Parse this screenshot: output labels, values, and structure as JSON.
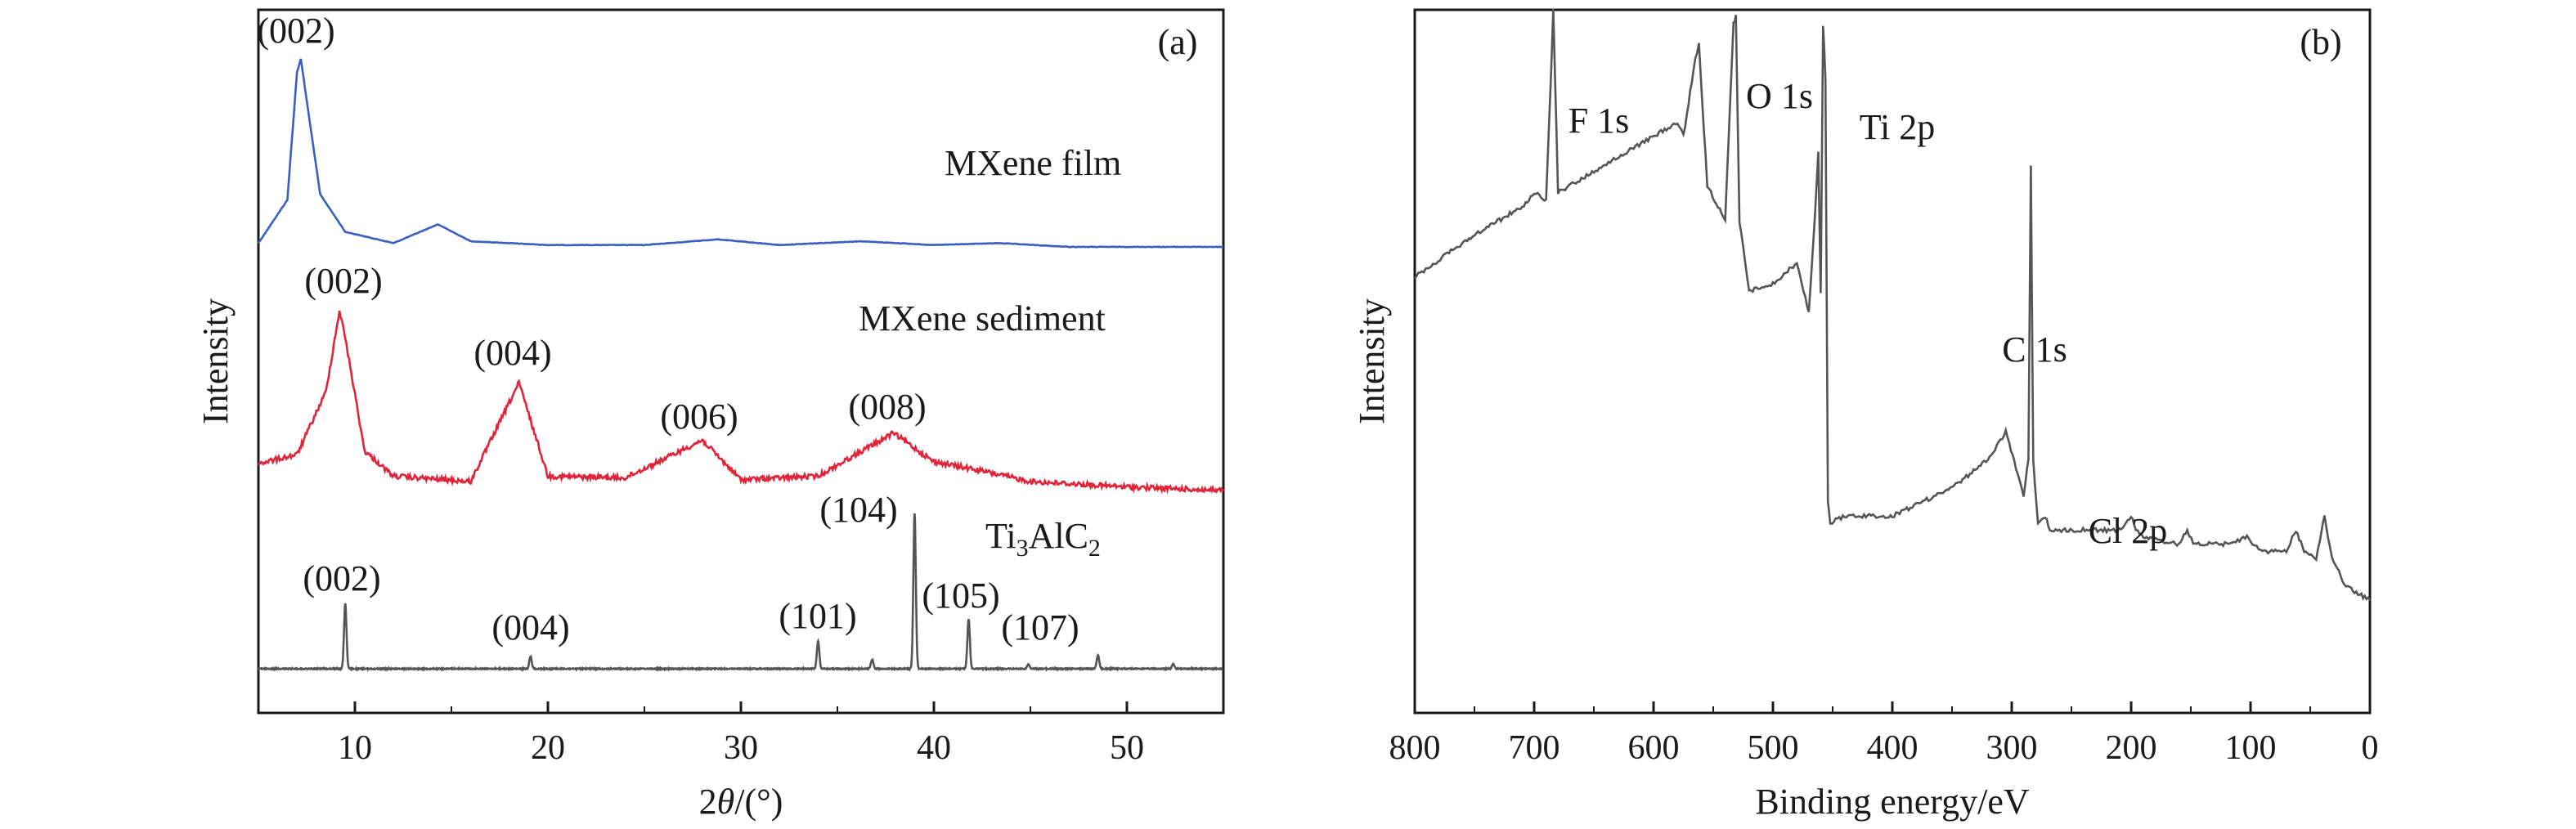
{
  "chart_data": [
    {
      "type": "line",
      "panel_label": "(a)",
      "xlabel": "2θ/(°)",
      "xlabel_parts": {
        "symbol": "2",
        "theta": "θ",
        "unit": "/(°)"
      },
      "ylabel": "Intensity",
      "xlim": [
        5,
        55
      ],
      "xticks": [
        10,
        20,
        30,
        40,
        50
      ],
      "yticks_visible": false,
      "grid": false,
      "series": [
        {
          "name": "MXene film",
          "color": "#3a5fc0",
          "x": [
            5,
            6.5,
            7.0,
            7.2,
            7.5,
            8.2,
            9.5,
            12,
            14.3,
            16,
            20,
            25,
            28.8,
            32,
            36.2,
            40,
            43.4,
            47,
            55
          ],
          "y": [
            0.02,
            0.25,
            0.93,
            1.0,
            0.78,
            0.28,
            0.08,
            0.02,
            0.12,
            0.03,
            0.01,
            0.01,
            0.04,
            0.01,
            0.03,
            0.01,
            0.02,
            0.0,
            0.0
          ],
          "peaks": [
            {
              "x": 7.2,
              "label": "(002)"
            }
          ]
        },
        {
          "name": "MXene sediment",
          "color": "#e0243a",
          "x": [
            5,
            7,
            8.5,
            9.2,
            9.5,
            10.5,
            12,
            16,
            18.5,
            20,
            24,
            28,
            30,
            34,
            37.9,
            40,
            42,
            45,
            50,
            55
          ],
          "y": [
            0.15,
            0.2,
            0.55,
            1.0,
            0.85,
            0.22,
            0.08,
            0.05,
            0.6,
            0.08,
            0.07,
            0.28,
            0.06,
            0.08,
            0.32,
            0.16,
            0.12,
            0.05,
            0.02,
            0.0
          ],
          "peaks": [
            {
              "x": 9.2,
              "label": "(002)"
            },
            {
              "x": 18.5,
              "label": "(004)"
            },
            {
              "x": 28.0,
              "label": "(006)"
            },
            {
              "x": 37.9,
              "label": "(008)"
            }
          ]
        },
        {
          "name": "Ti3AlC2",
          "name_parts": {
            "base": "Ti",
            "sub1": "3",
            "mid": "AlC",
            "sub2": "2"
          },
          "color": "#555555",
          "peaks": [
            {
              "x": 9.5,
              "height": 0.42,
              "label": "(002)"
            },
            {
              "x": 19.1,
              "height": 0.08,
              "label": "(004)"
            },
            {
              "x": 34.0,
              "height": 0.18,
              "label": "(101)"
            },
            {
              "x": 36.8,
              "height": 0.06
            },
            {
              "x": 39.0,
              "height": 1.0,
              "label": "(104)"
            },
            {
              "x": 41.8,
              "height": 0.32,
              "label": "(105)"
            },
            {
              "x": 44.9,
              "height": 0.03
            },
            {
              "x": 48.5,
              "height": 0.09,
              "label": "(107)"
            },
            {
              "x": 52.4,
              "height": 0.03
            }
          ]
        }
      ]
    },
    {
      "type": "line",
      "panel_label": "(b)",
      "xlabel": "Binding energy/eV",
      "ylabel": "Intensity",
      "xlim": [
        800,
        0
      ],
      "xticks": [
        800,
        700,
        600,
        500,
        400,
        300,
        200,
        100,
        0
      ],
      "yticks_visible": false,
      "grid": false,
      "series": [
        {
          "name": "",
          "color": "#555555",
          "x": [
            800,
            750,
            710,
            700,
            690,
            686,
            684,
            680,
            650,
            600,
            580,
            575,
            565,
            562,
            555,
            540,
            533,
            531,
            528,
            520,
            500,
            480,
            470,
            465,
            462,
            460,
            458,
            456,
            454,
            452,
            440,
            400,
            350,
            320,
            305,
            295,
            290,
            286,
            284,
            282,
            278,
            272,
            268,
            260,
            210,
            200,
            196,
            190,
            160,
            153,
            148,
            120,
            103,
            98,
            90,
            70,
            62,
            55,
            45,
            38,
            32,
            20,
            10,
            0
          ],
          "y": [
            0.62,
            0.68,
            0.72,
            0.74,
            0.73,
            0.9,
            1.0,
            0.74,
            0.77,
            0.82,
            0.84,
            0.82,
            0.93,
            0.95,
            0.75,
            0.7,
            0.98,
            0.99,
            0.7,
            0.6,
            0.61,
            0.64,
            0.57,
            0.7,
            0.8,
            0.6,
            0.98,
            0.9,
            0.3,
            0.27,
            0.28,
            0.28,
            0.32,
            0.36,
            0.4,
            0.34,
            0.31,
            0.36,
            0.78,
            0.36,
            0.27,
            0.28,
            0.26,
            0.26,
            0.26,
            0.28,
            0.26,
            0.25,
            0.24,
            0.26,
            0.24,
            0.24,
            0.25,
            0.24,
            0.23,
            0.23,
            0.26,
            0.23,
            0.22,
            0.28,
            0.22,
            0.18,
            0.17,
            0.16
          ],
          "annotations": [
            {
              "x": 686,
              "label_main": "F",
              "label_orbital": "1s"
            },
            {
              "x": 531,
              "label_main": "O",
              "label_orbital": "1s"
            },
            {
              "x": 458,
              "label_main": "Ti",
              "label_orbital": "2p"
            },
            {
              "x": 284,
              "label_main": "C",
              "label_orbital": "1s"
            },
            {
              "x": 200,
              "label_main": "Cl",
              "label_orbital": "2p"
            }
          ]
        }
      ]
    }
  ]
}
